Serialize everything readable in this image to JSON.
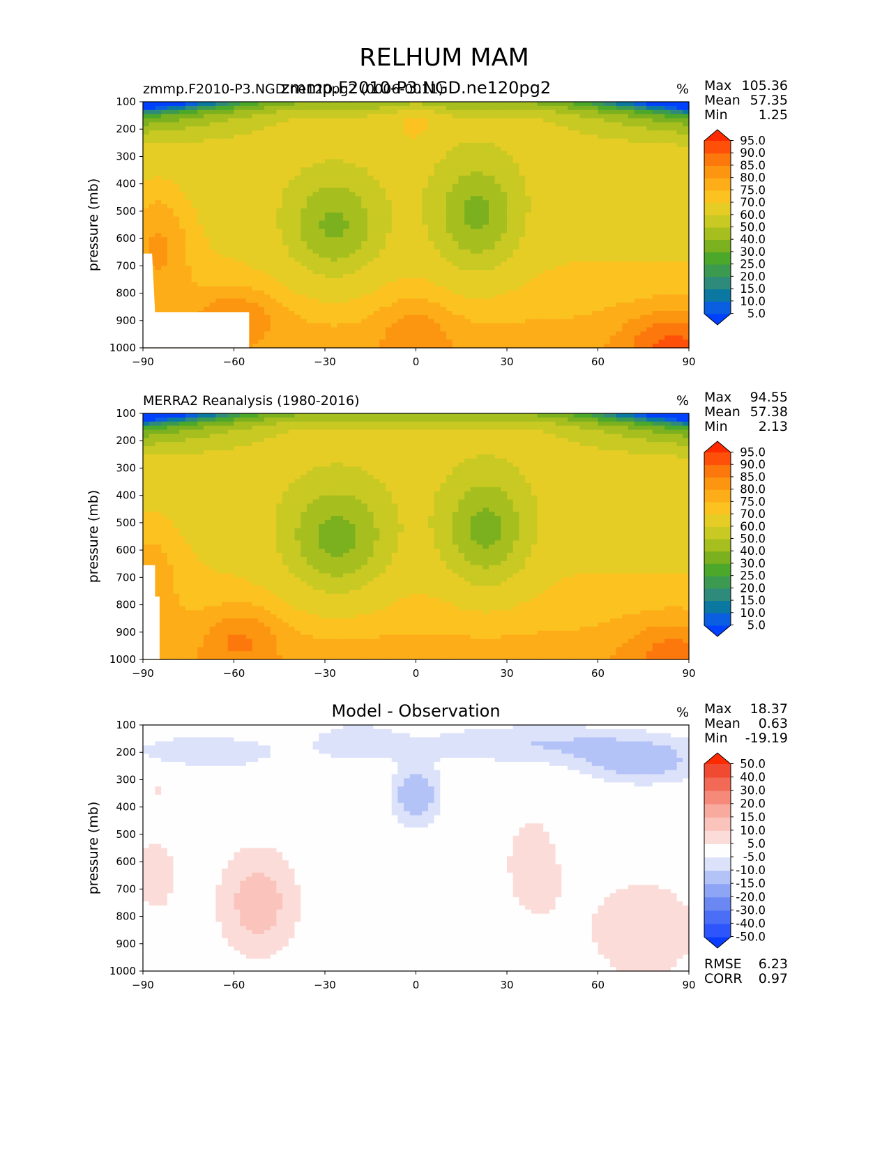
{
  "figure_title": "RELHUM MAM",
  "chart_data": [
    {
      "type": "heatmap",
      "title_left": "zmmp.F2010-P3.NGD.ne120pg2 (0006-0011)",
      "title_center": "zmmp.F2010-P3.NGD.ne120pg2",
      "units": "%",
      "xlabel": "",
      "ylabel": "pressure (mb)",
      "x_ticks": [
        "−90",
        "−60",
        "−30",
        "0",
        "30",
        "60",
        "90"
      ],
      "y_ticks": [
        "100",
        "200",
        "300",
        "400",
        "500",
        "600",
        "700",
        "800",
        "900",
        "1000"
      ],
      "xlim": [
        -90,
        90
      ],
      "ylim": [
        1000,
        100
      ],
      "stats": {
        "max_label": "Max",
        "max": "105.36",
        "mean_label": "Mean",
        "mean": "57.35",
        "min_label": "Min",
        "min": "1.25"
      },
      "levels": [
        5.0,
        10.0,
        15.0,
        20.0,
        25.0,
        30.0,
        40.0,
        50.0,
        60.0,
        70.0,
        75.0,
        80.0,
        85.0,
        90.0,
        95.0
      ],
      "level_labels": [
        "5.0",
        "10.0",
        "15.0",
        "20.0",
        "25.0",
        "30.0",
        "40.0",
        "50.0",
        "60.0",
        "70.0",
        "75.0",
        "80.0",
        "85.0",
        "90.0",
        "95.0"
      ],
      "colors": [
        "#0040ff",
        "#0a5ee0",
        "#0a78a0",
        "#2e8a7a",
        "#3c9a50",
        "#4ca82a",
        "#7bb01f",
        "#a6bf1f",
        "#c9c923",
        "#e6cd26",
        "#fbc220",
        "#fcad18",
        "#fc9510",
        "#fc780c",
        "#fe5008",
        "#ff2a00"
      ],
      "field": "model",
      "anomaly": false
    },
    {
      "type": "heatmap",
      "title_left": "MERRA2 Reanalysis (1980-2016)",
      "title_center": "",
      "units": "%",
      "xlabel": "",
      "ylabel": "pressure (mb)",
      "x_ticks": [
        "−90",
        "−60",
        "−30",
        "0",
        "30",
        "60",
        "90"
      ],
      "y_ticks": [
        "100",
        "200",
        "300",
        "400",
        "500",
        "600",
        "700",
        "800",
        "900",
        "1000"
      ],
      "xlim": [
        -90,
        90
      ],
      "ylim": [
        1000,
        100
      ],
      "stats": {
        "max_label": "Max",
        "max": "94.55",
        "mean_label": "Mean",
        "mean": "57.38",
        "min_label": "Min",
        "min": "2.13"
      },
      "levels": [
        5.0,
        10.0,
        15.0,
        20.0,
        25.0,
        30.0,
        40.0,
        50.0,
        60.0,
        70.0,
        75.0,
        80.0,
        85.0,
        90.0,
        95.0
      ],
      "level_labels": [
        "5.0",
        "10.0",
        "15.0",
        "20.0",
        "25.0",
        "30.0",
        "40.0",
        "50.0",
        "60.0",
        "70.0",
        "75.0",
        "80.0",
        "85.0",
        "90.0",
        "95.0"
      ],
      "colors": [
        "#0040ff",
        "#0a5ee0",
        "#0a78a0",
        "#2e8a7a",
        "#3c9a50",
        "#4ca82a",
        "#7bb01f",
        "#a6bf1f",
        "#c9c923",
        "#e6cd26",
        "#fbc220",
        "#fcad18",
        "#fc9510",
        "#fc780c",
        "#fe5008",
        "#ff2a00"
      ],
      "field": "obs",
      "anomaly": false
    },
    {
      "type": "heatmap",
      "title_left": "",
      "title_center": "Model - Observation",
      "units": "%",
      "xlabel": "",
      "ylabel": "pressure (mb)",
      "x_ticks": [
        "−90",
        "−60",
        "−30",
        "0",
        "30",
        "60",
        "90"
      ],
      "y_ticks": [
        "100",
        "200",
        "300",
        "400",
        "500",
        "600",
        "700",
        "800",
        "900",
        "1000"
      ],
      "xlim": [
        -90,
        90
      ],
      "ylim": [
        1000,
        100
      ],
      "stats": {
        "max_label": "Max",
        "max": "18.37",
        "mean_label": "Mean",
        "mean": "0.63",
        "min_label": "Min",
        "min": "-19.19"
      },
      "extra_stats": {
        "rmse_label": "RMSE",
        "rmse": "6.23",
        "corr_label": "CORR",
        "corr": "0.97"
      },
      "levels": [
        -50.0,
        -40.0,
        -30.0,
        -20.0,
        -15.0,
        -10.0,
        -5.0,
        5.0,
        10.0,
        15.0,
        20.0,
        30.0,
        40.0,
        50.0
      ],
      "level_labels": [
        "-50.0",
        "-40.0",
        "-30.0",
        "-20.0",
        "-15.0",
        "-10.0",
        "-5.0",
        "5.0",
        "10.0",
        "15.0",
        "20.0",
        "30.0",
        "40.0",
        "50.0"
      ],
      "colors": [
        "#0a3cff",
        "#2d55fb",
        "#4a6ef6",
        "#6b88f2",
        "#8ea4f5",
        "#b3c2f7",
        "#dce2fa",
        "#fefefe",
        "#fcdcd8",
        "#fac4bc",
        "#f8aa9e",
        "#f58a7a",
        "#f26a55",
        "#f04a33",
        "#ff2a00"
      ],
      "field": "diff",
      "anomaly": true
    }
  ]
}
